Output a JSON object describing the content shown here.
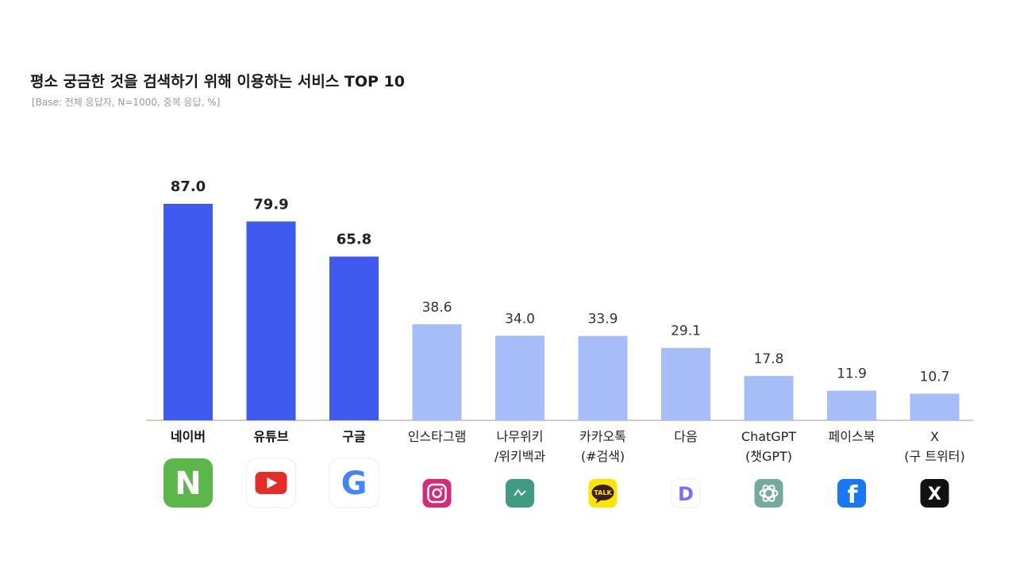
{
  "chart_data": {
    "type": "bar",
    "title": "평소 궁금한 것을 검색하기 위해 이용하는 서비스 TOP 10",
    "subtitle": "[Base: 전체 응답자, N=1000, 중복 응답, %]",
    "categories": [
      [
        "네이버"
      ],
      [
        "유튜브"
      ],
      [
        "구글"
      ],
      [
        "인스타그램"
      ],
      [
        "나무위키",
        "/위키백과"
      ],
      [
        "카카오톡",
        "(#검색)"
      ],
      [
        "다음"
      ],
      [
        "ChatGPT",
        "(챗GPT)"
      ],
      [
        "페이스북"
      ],
      [
        "X",
        "(구 트위터)"
      ]
    ],
    "values": [
      87.0,
      79.9,
      65.8,
      38.6,
      34.0,
      33.9,
      29.1,
      17.8,
      11.9,
      10.7
    ],
    "value_labels": [
      "87.0",
      "79.9",
      "65.8",
      "38.6",
      "34.0",
      "33.9",
      "29.1",
      "17.8",
      "11.9",
      "10.7"
    ],
    "highlight_count": 3,
    "ylim": [
      0,
      87.0
    ],
    "grid": false,
    "colors": {
      "highlight": "#3f5bef",
      "normal": "#a7bdf8",
      "axis": "#bbbbbb"
    }
  },
  "icons": [
    {
      "name": "naver-icon",
      "bg": "#5bb74a",
      "glyph": "N",
      "color": "#ffffff"
    },
    {
      "name": "youtube-icon",
      "bg": "#ffffff",
      "glyph": "play",
      "color": "#e52d27"
    },
    {
      "name": "google-icon",
      "bg": "#ffffff",
      "glyph": "G",
      "color": "#4285f4"
    },
    {
      "name": "instagram-icon",
      "bg": "#d62976",
      "glyph": "camera",
      "color": "#ffffff"
    },
    {
      "name": "namuwiki-icon",
      "bg": "#3f9b82",
      "glyph": "tree",
      "color": "#ffffff"
    },
    {
      "name": "kakaotalk-icon",
      "bg": "#fee500",
      "glyph": "TALK",
      "color": "#3c1e1e"
    },
    {
      "name": "daum-icon",
      "bg": "#ffffff",
      "glyph": "D",
      "color": "#7b6cff"
    },
    {
      "name": "chatgpt-icon",
      "bg": "#74aa9c",
      "glyph": "knot",
      "color": "#ffffff"
    },
    {
      "name": "facebook-icon",
      "bg": "#1877f2",
      "glyph": "f",
      "color": "#ffffff"
    },
    {
      "name": "x-icon",
      "bg": "#111111",
      "glyph": "X",
      "color": "#ffffff"
    }
  ]
}
